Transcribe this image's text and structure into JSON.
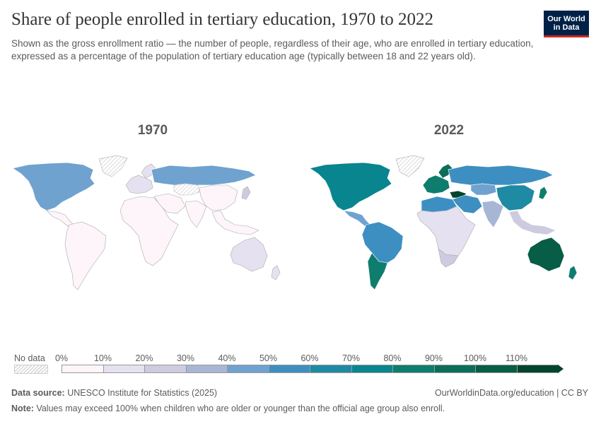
{
  "title": "Share of people enrolled in tertiary education, 1970 to 2022",
  "subtitle": "Shown as the gross enrollment ratio — the number of people, regardless of their age, who are enrolled in tertiary education, expressed as a percentage of the population of tertiary education age (typically between 18 and 22 years old).",
  "logo": {
    "line1": "Our World",
    "line2": "in Data"
  },
  "maps": [
    {
      "year": "1970"
    },
    {
      "year": "2022"
    }
  ],
  "legend": {
    "no_data_label": "No data",
    "ticks": [
      "0%",
      "10%",
      "20%",
      "30%",
      "40%",
      "50%",
      "60%",
      "70%",
      "80%",
      "90%",
      "100%",
      "110%"
    ],
    "colors": [
      "#fdf5fa",
      "#e6e1f0",
      "#cccbe0",
      "#a8b6d6",
      "#6fa2cf",
      "#3d8fc2",
      "#1f8aa3",
      "#08858f",
      "#0f7d6e",
      "#0b6e5a",
      "#075d45",
      "#00452c"
    ],
    "no_data_color": "#d6d6d6"
  },
  "footer": {
    "source_label": "Data source:",
    "source_text": "UNESCO Institute for Statistics (2025)",
    "url": "OurWorldinData.org/education | CC BY",
    "note_label": "Note:",
    "note_text": "Values may exceed 100% when children who are older or younger than the official age group also enroll."
  },
  "regions": {
    "1970": {
      "north_america": "#6fa2cf",
      "greenland": "#d6d6d6",
      "central_america": "#fdf5fa",
      "south_america": "#fdf5fa",
      "europe_west": "#e6e1f0",
      "scandinavia": "#e6e1f0",
      "russia": "#6fa2cf",
      "central_asia": "#d6d6d6",
      "middle_east": "#fdf5fa",
      "africa": "#fdf5fa",
      "south_asia": "#fdf5fa",
      "china": "#fdf5fa",
      "southeast_asia": "#fdf5fa",
      "japan": "#cccbe0",
      "australia": "#e6e1f0",
      "new_zealand": "#e6e1f0"
    },
    "2022": {
      "north_america": "#08858f",
      "greenland": "#d6d6d6",
      "central_america": "#6fa2cf",
      "south_america": "#3d8fc2",
      "argentina": "#0f7d6e",
      "europe_west": "#0f7d6e",
      "scandinavia": "#0b6e5a",
      "russia": "#3d8fc2",
      "central_asia": "#6fa2cf",
      "middle_east": "#3d8fc2",
      "turkey": "#00452c",
      "north_africa": "#3d8fc2",
      "africa": "#e6e1f0",
      "south_africa": "#cccbe0",
      "south_asia": "#a8b6d6",
      "china": "#1f8aa3",
      "southeast_asia": "#cccbe0",
      "japan": "#0f7d6e",
      "australia": "#075d45",
      "new_zealand": "#0f7d6e"
    }
  }
}
